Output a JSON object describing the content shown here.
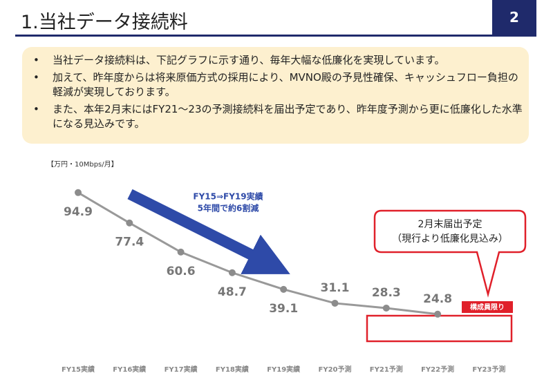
{
  "header": {
    "title": "1.当社データ接続料",
    "page": "2"
  },
  "bullets": [
    "当社データ接続料は、下記グラフに示す通り、毎年大幅な低廉化を実現しています。",
    "加えて、昨年度からは将来原価方式の採用により、MVNO殿の予見性確保、キャッシュフロー負担の軽減が実現しております。",
    "また、本年2月末にはFY21～23の予測接続料を届出予定であり、昨年度予測から更に低廉化した水準になる見込みです。"
  ],
  "chart_data": {
    "type": "line",
    "unit_label": "【万円・10Mbps/月】",
    "categories": [
      "FY15実績",
      "FY16実績",
      "FY17実績",
      "FY18実績",
      "FY19実績",
      "FY20予測",
      "FY21予測",
      "FY22予測",
      "FY23予測"
    ],
    "series": [
      {
        "color": "#999999",
        "values": [
          94.9,
          77.4,
          60.6,
          48.7,
          39.1,
          31.1,
          28.3,
          24.8,
          null
        ]
      }
    ],
    "ylim": [
      0,
      100
    ],
    "annotations": [
      "FY15⇒FY19実績",
      "5年間で約6割減"
    ],
    "callout": [
      "2月末届出予定",
      "（現行より低廉化見込み）"
    ],
    "badge": "構成員限り"
  }
}
